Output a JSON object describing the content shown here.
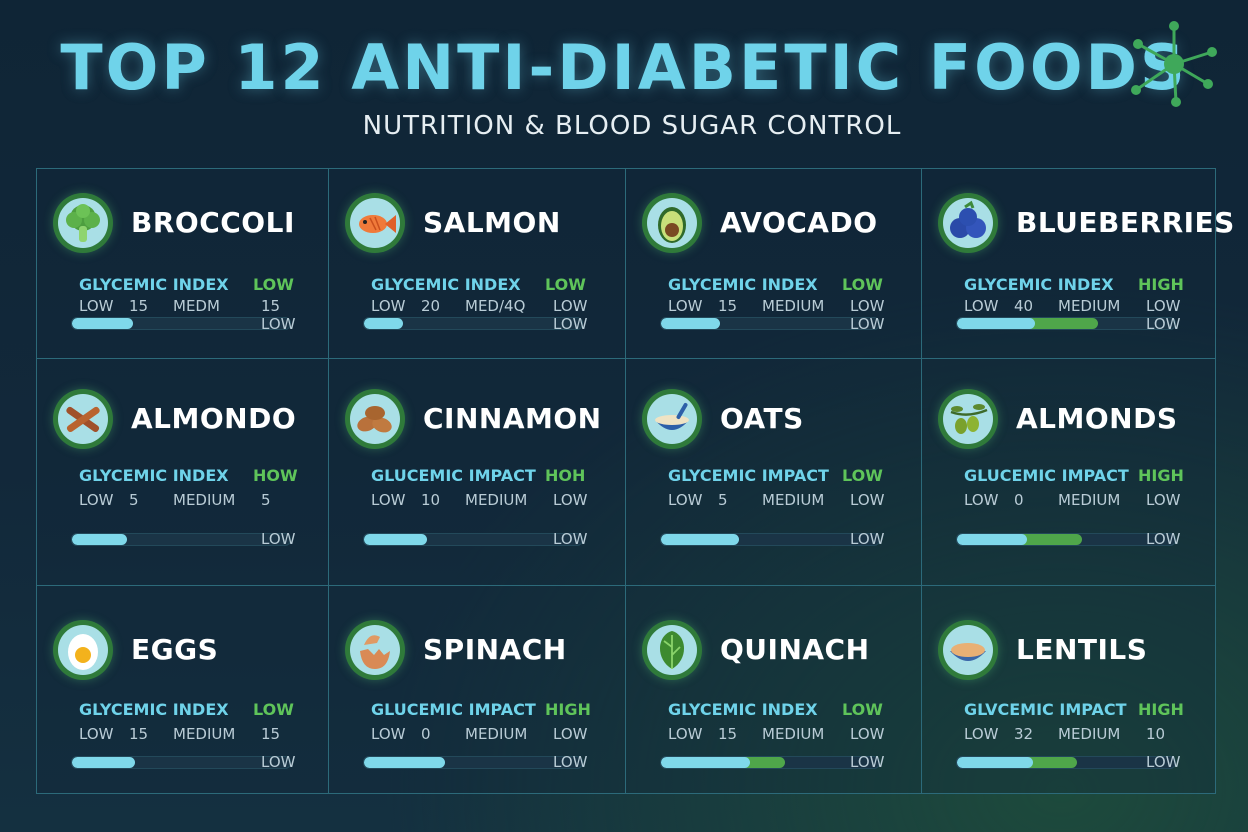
{
  "header": {
    "title": "TOP 12 ANTI-DIABETIC FOODS",
    "subtitle": "NUTRITION & BLOOD SUGAR CONTROL"
  },
  "colors": {
    "accent": "#6fd3ea",
    "green": "#5fc45a",
    "bar_cyan": "#7fd8ea",
    "bar_green": "#4fa64a"
  },
  "foods": [
    {
      "name": "BROCCOLI",
      "icon": "broccoli-icon",
      "label": "GLYCEMIC INDEX",
      "rating": "LOW",
      "scale": [
        "LOW",
        "15",
        "MEDM",
        "15"
      ],
      "bar_label": "LOW",
      "bar_level": 0.28,
      "bar_level_green": 0
    },
    {
      "name": "SALMON",
      "icon": "fish-icon",
      "label": "GLYCEMIC INDEX",
      "rating": "LOW",
      "scale": [
        "LOW",
        "20",
        "MED/4Q",
        "LOW"
      ],
      "bar_label": "LOW",
      "bar_level": 0.18,
      "bar_level_green": 0
    },
    {
      "name": "AVOCADO",
      "icon": "avocado-icon",
      "label": "GLYCEMIC INDEX",
      "rating": "LOW",
      "scale": [
        "LOW",
        "15",
        "MEDIUM",
        "LOW"
      ],
      "bar_label": "LOW",
      "bar_level": 0.27,
      "bar_level_green": 0
    },
    {
      "name": "BLUEBERRIES",
      "icon": "blueberries-icon",
      "label": "GLYCEMIC INDEX",
      "rating": "HIGH",
      "scale": [
        "LOW",
        "40",
        "MEDIUM",
        "LOW"
      ],
      "bar_label": "LOW",
      "bar_level": 0.36,
      "bar_level_green": 0.29
    },
    {
      "name": "ALMONDO",
      "icon": "cinnamon-sticks-icon",
      "label": "GLYCEMIC INDEX",
      "rating": "HOW",
      "scale": [
        "LOW",
        "5",
        "MEDIUM",
        "5"
      ],
      "bar_label": "LOW",
      "bar_level": 0.25,
      "bar_level_green": 0
    },
    {
      "name": "CINNAMON",
      "icon": "almonds-icon",
      "label": "GLUCEMIC IMPACT",
      "rating": "HOH",
      "scale": [
        "LOW",
        "10",
        "MEDIUM",
        "LOW"
      ],
      "bar_label": "LOW",
      "bar_level": 0.29,
      "bar_level_green": 0
    },
    {
      "name": "OATS",
      "icon": "oats-bowl-icon",
      "label": "GLYCEMIC IMPACT",
      "rating": "LOW",
      "scale": [
        "LOW",
        "5",
        "MEDIUM",
        "LOW"
      ],
      "bar_label": "LOW",
      "bar_level": 0.36,
      "bar_level_green": 0
    },
    {
      "name": "ALMONDS",
      "icon": "olive-branch-icon",
      "label": "GLUCEMIC IMPACT",
      "rating": "HIGH",
      "scale": [
        "LOW",
        "0",
        "MEDIUM",
        "LOW"
      ],
      "bar_label": "LOW",
      "bar_level": 0.32,
      "bar_level_green": 0.25
    },
    {
      "name": "EGGS",
      "icon": "egg-icon",
      "label": "GLYCEMIC INDEX",
      "rating": "LOW",
      "scale": [
        "LOW",
        "15",
        "MEDIUM",
        "15"
      ],
      "bar_label": "LOW",
      "bar_level": 0.29,
      "bar_level_green": 0
    },
    {
      "name": "SPINACH",
      "icon": "cracked-egg-icon",
      "label": "GLUCEMIC IMPACT",
      "rating": "HIGH",
      "scale": [
        "LOW",
        "0",
        "MEDIUM",
        "LOW"
      ],
      "bar_label": "LOW",
      "bar_level": 0.37,
      "bar_level_green": 0
    },
    {
      "name": "QUINACH",
      "icon": "spinach-leaf-icon",
      "label": "GLYCEMIC INDEX",
      "rating": "LOW",
      "scale": [
        "LOW",
        "15",
        "MEDIUM",
        "LOW"
      ],
      "bar_label": "LOW",
      "bar_level": 0.41,
      "bar_level_green": 0.16
    },
    {
      "name": "LENTILS",
      "icon": "lentils-bowl-icon",
      "label": "GLVCEMIC IMPACT",
      "rating": "HIGH",
      "scale": [
        "LOW",
        "32",
        "MEDIUM",
        "10"
      ],
      "bar_label": "LOW",
      "bar_level": 0.35,
      "bar_level_green": 0.2
    }
  ]
}
